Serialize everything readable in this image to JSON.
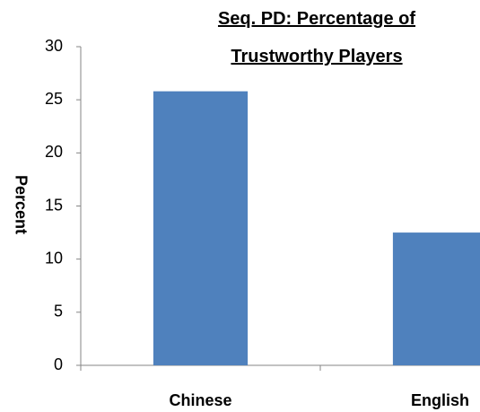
{
  "chart_data": {
    "type": "bar",
    "title": "Seq. PD: Percentage of Trustworthy Players",
    "ylabel": "Percent",
    "categories": [
      "Chinese",
      "English"
    ],
    "values": [
      25.8,
      12.5
    ],
    "color": "#4f81bd",
    "ylim": [
      0,
      30
    ],
    "yticks": [
      0,
      5,
      10,
      15,
      20,
      25,
      30
    ],
    "grid": false
  }
}
